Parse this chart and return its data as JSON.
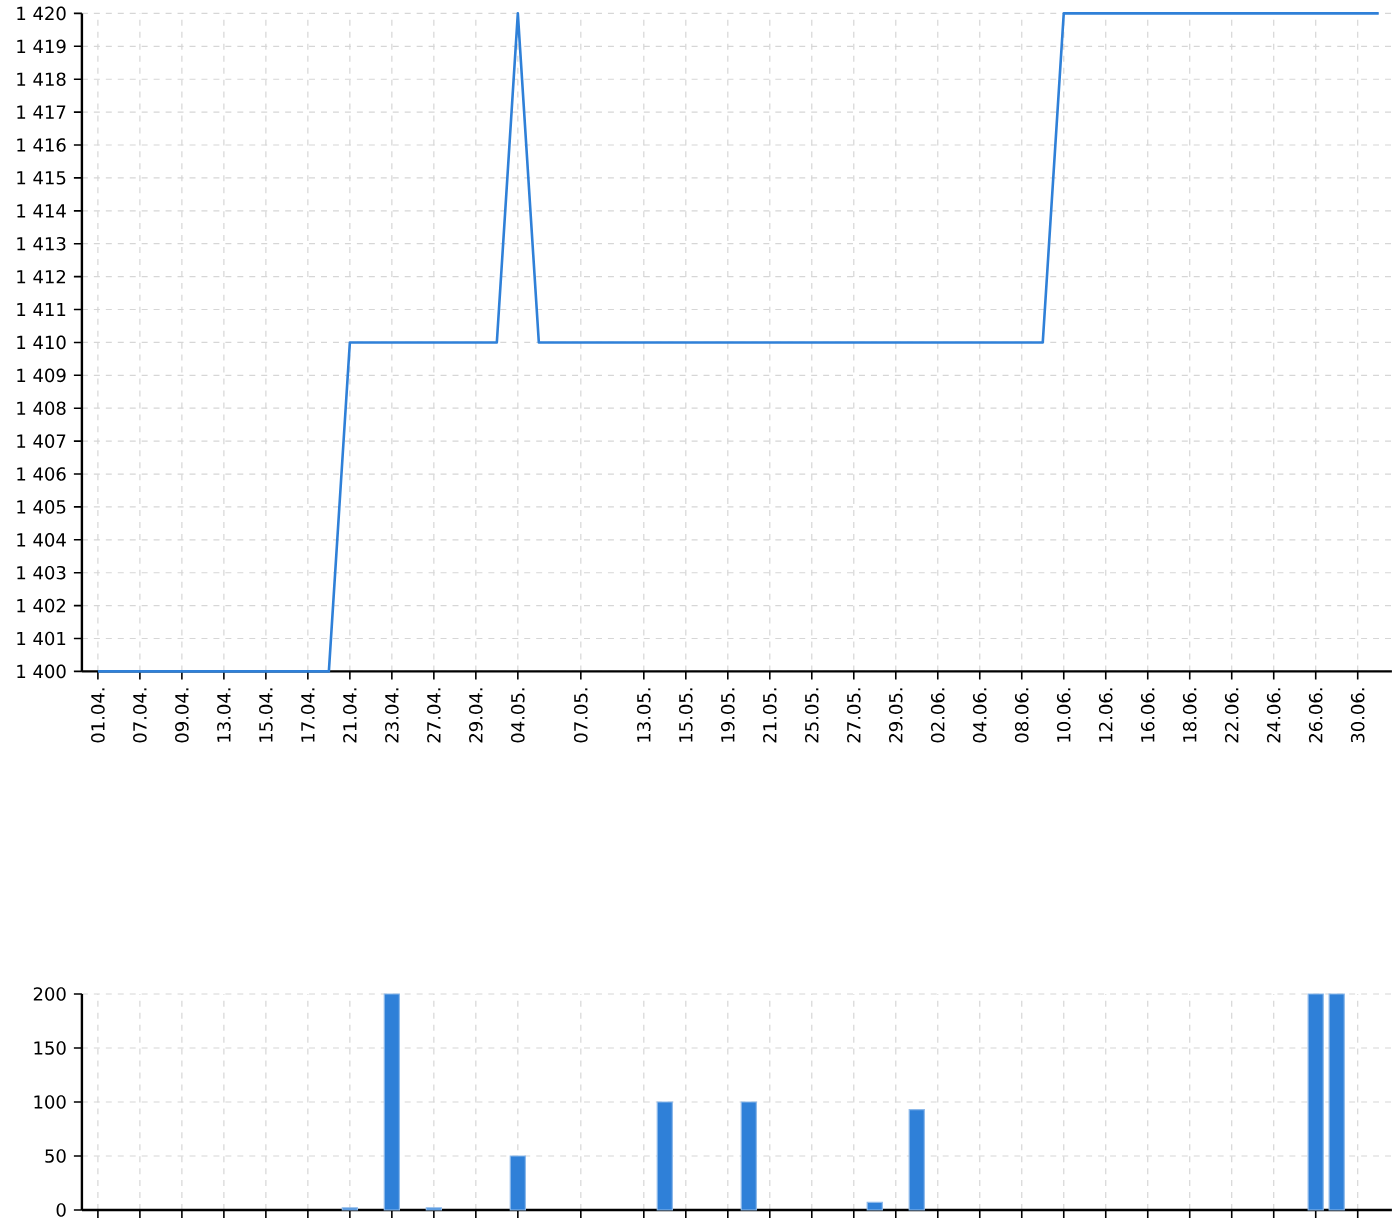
{
  "chart_data": [
    {
      "type": "line",
      "categories": [
        "01.04.",
        null,
        "07.04.",
        null,
        "09.04.",
        null,
        "13.04.",
        null,
        "15.04.",
        null,
        "17.04.",
        null,
        "21.04.",
        null,
        "23.04.",
        null,
        "27.04.",
        null,
        "29.04.",
        null,
        "04.05.",
        null,
        null,
        "07.05.",
        null,
        null,
        "13.05.",
        null,
        "15.05.",
        null,
        "19.05.",
        null,
        "21.05.",
        null,
        "25.05.",
        null,
        "27.05.",
        null,
        "29.05.",
        null,
        "02.06.",
        null,
        "04.06.",
        null,
        "08.06.",
        null,
        "10.06.",
        null,
        "12.06.",
        null,
        "16.06.",
        null,
        "18.06.",
        null,
        "22.06.",
        null,
        "24.06.",
        null,
        "26.06.",
        null,
        "30.06.",
        null
      ],
      "values": [
        1400,
        1400,
        1400,
        1400,
        1400,
        1400,
        1400,
        1400,
        1400,
        1400,
        1400,
        1400,
        1410,
        1410,
        1410,
        1410,
        1410,
        1410,
        1410,
        1410,
        1420,
        1410,
        1410,
        1410,
        1410,
        1410,
        1410,
        1410,
        1410,
        1410,
        1410,
        1410,
        1410,
        1410,
        1410,
        1410,
        1410,
        1410,
        1410,
        1410,
        1410,
        1410,
        1410,
        1410,
        1410,
        1410,
        1420,
        1420,
        1420,
        1420,
        1420,
        1420,
        1420,
        1420,
        1420,
        1420,
        1420,
        1420,
        1420,
        1420,
        1420,
        1420
      ],
      "color": "#2f80d8",
      "ylim": [
        1400,
        1420
      ],
      "yticks": [
        {
          "value": 1400,
          "label": "1 400"
        },
        {
          "value": 1401,
          "label": "1 401"
        },
        {
          "value": 1402,
          "label": "1 402"
        },
        {
          "value": 1403,
          "label": "1 403"
        },
        {
          "value": 1404,
          "label": "1 404"
        },
        {
          "value": 1405,
          "label": "1 405"
        },
        {
          "value": 1406,
          "label": "1 406"
        },
        {
          "value": 1407,
          "label": "1 407"
        },
        {
          "value": 1408,
          "label": "1 408"
        },
        {
          "value": 1409,
          "label": "1 409"
        },
        {
          "value": 1410,
          "label": "1 410"
        },
        {
          "value": 1411,
          "label": "1 411"
        },
        {
          "value": 1412,
          "label": "1 412"
        },
        {
          "value": 1413,
          "label": "1 413"
        },
        {
          "value": 1414,
          "label": "1 414"
        },
        {
          "value": 1415,
          "label": "1 415"
        },
        {
          "value": 1416,
          "label": "1 416"
        },
        {
          "value": 1417,
          "label": "1 417"
        },
        {
          "value": 1418,
          "label": "1 418"
        },
        {
          "value": 1419,
          "label": "1 419"
        },
        {
          "value": 1420,
          "label": "1 420"
        }
      ],
      "grid": true
    },
    {
      "type": "bar",
      "categories": [
        "01.04.",
        null,
        "07.04.",
        null,
        "09.04.",
        null,
        "13.04.",
        null,
        "15.04.",
        null,
        "17.04.",
        null,
        "21.04.",
        null,
        "23.04.",
        null,
        "27.04.",
        null,
        "29.04.",
        null,
        "04.05.",
        null,
        null,
        "07.05.",
        null,
        null,
        "13.05.",
        null,
        "15.05.",
        null,
        "19.05.",
        null,
        "21.05.",
        null,
        "25.05.",
        null,
        "27.05.",
        null,
        "29.05.",
        null,
        "02.06.",
        null,
        "04.06.",
        null,
        "08.06.",
        null,
        "10.06.",
        null,
        "12.06.",
        null,
        "16.06.",
        null,
        "18.06.",
        null,
        "22.06.",
        null,
        "24.06.",
        null,
        "26.06.",
        null,
        "30.06.",
        null
      ],
      "values": [
        null,
        null,
        null,
        null,
        null,
        null,
        null,
        null,
        null,
        null,
        null,
        null,
        2,
        null,
        200,
        null,
        2,
        null,
        null,
        null,
        50,
        null,
        null,
        null,
        null,
        null,
        null,
        100,
        null,
        null,
        null,
        100,
        null,
        null,
        null,
        null,
        null,
        7,
        null,
        93,
        null,
        null,
        null,
        null,
        null,
        null,
        null,
        null,
        null,
        null,
        null,
        null,
        null,
        null,
        null,
        null,
        null,
        null,
        200,
        200,
        null,
        null
      ],
      "color": "#2f80d8",
      "ylim": [
        0,
        200
      ],
      "yticks": [
        0,
        50,
        100,
        150,
        200
      ],
      "grid": true,
      "tick_labels": "y"
    }
  ]
}
